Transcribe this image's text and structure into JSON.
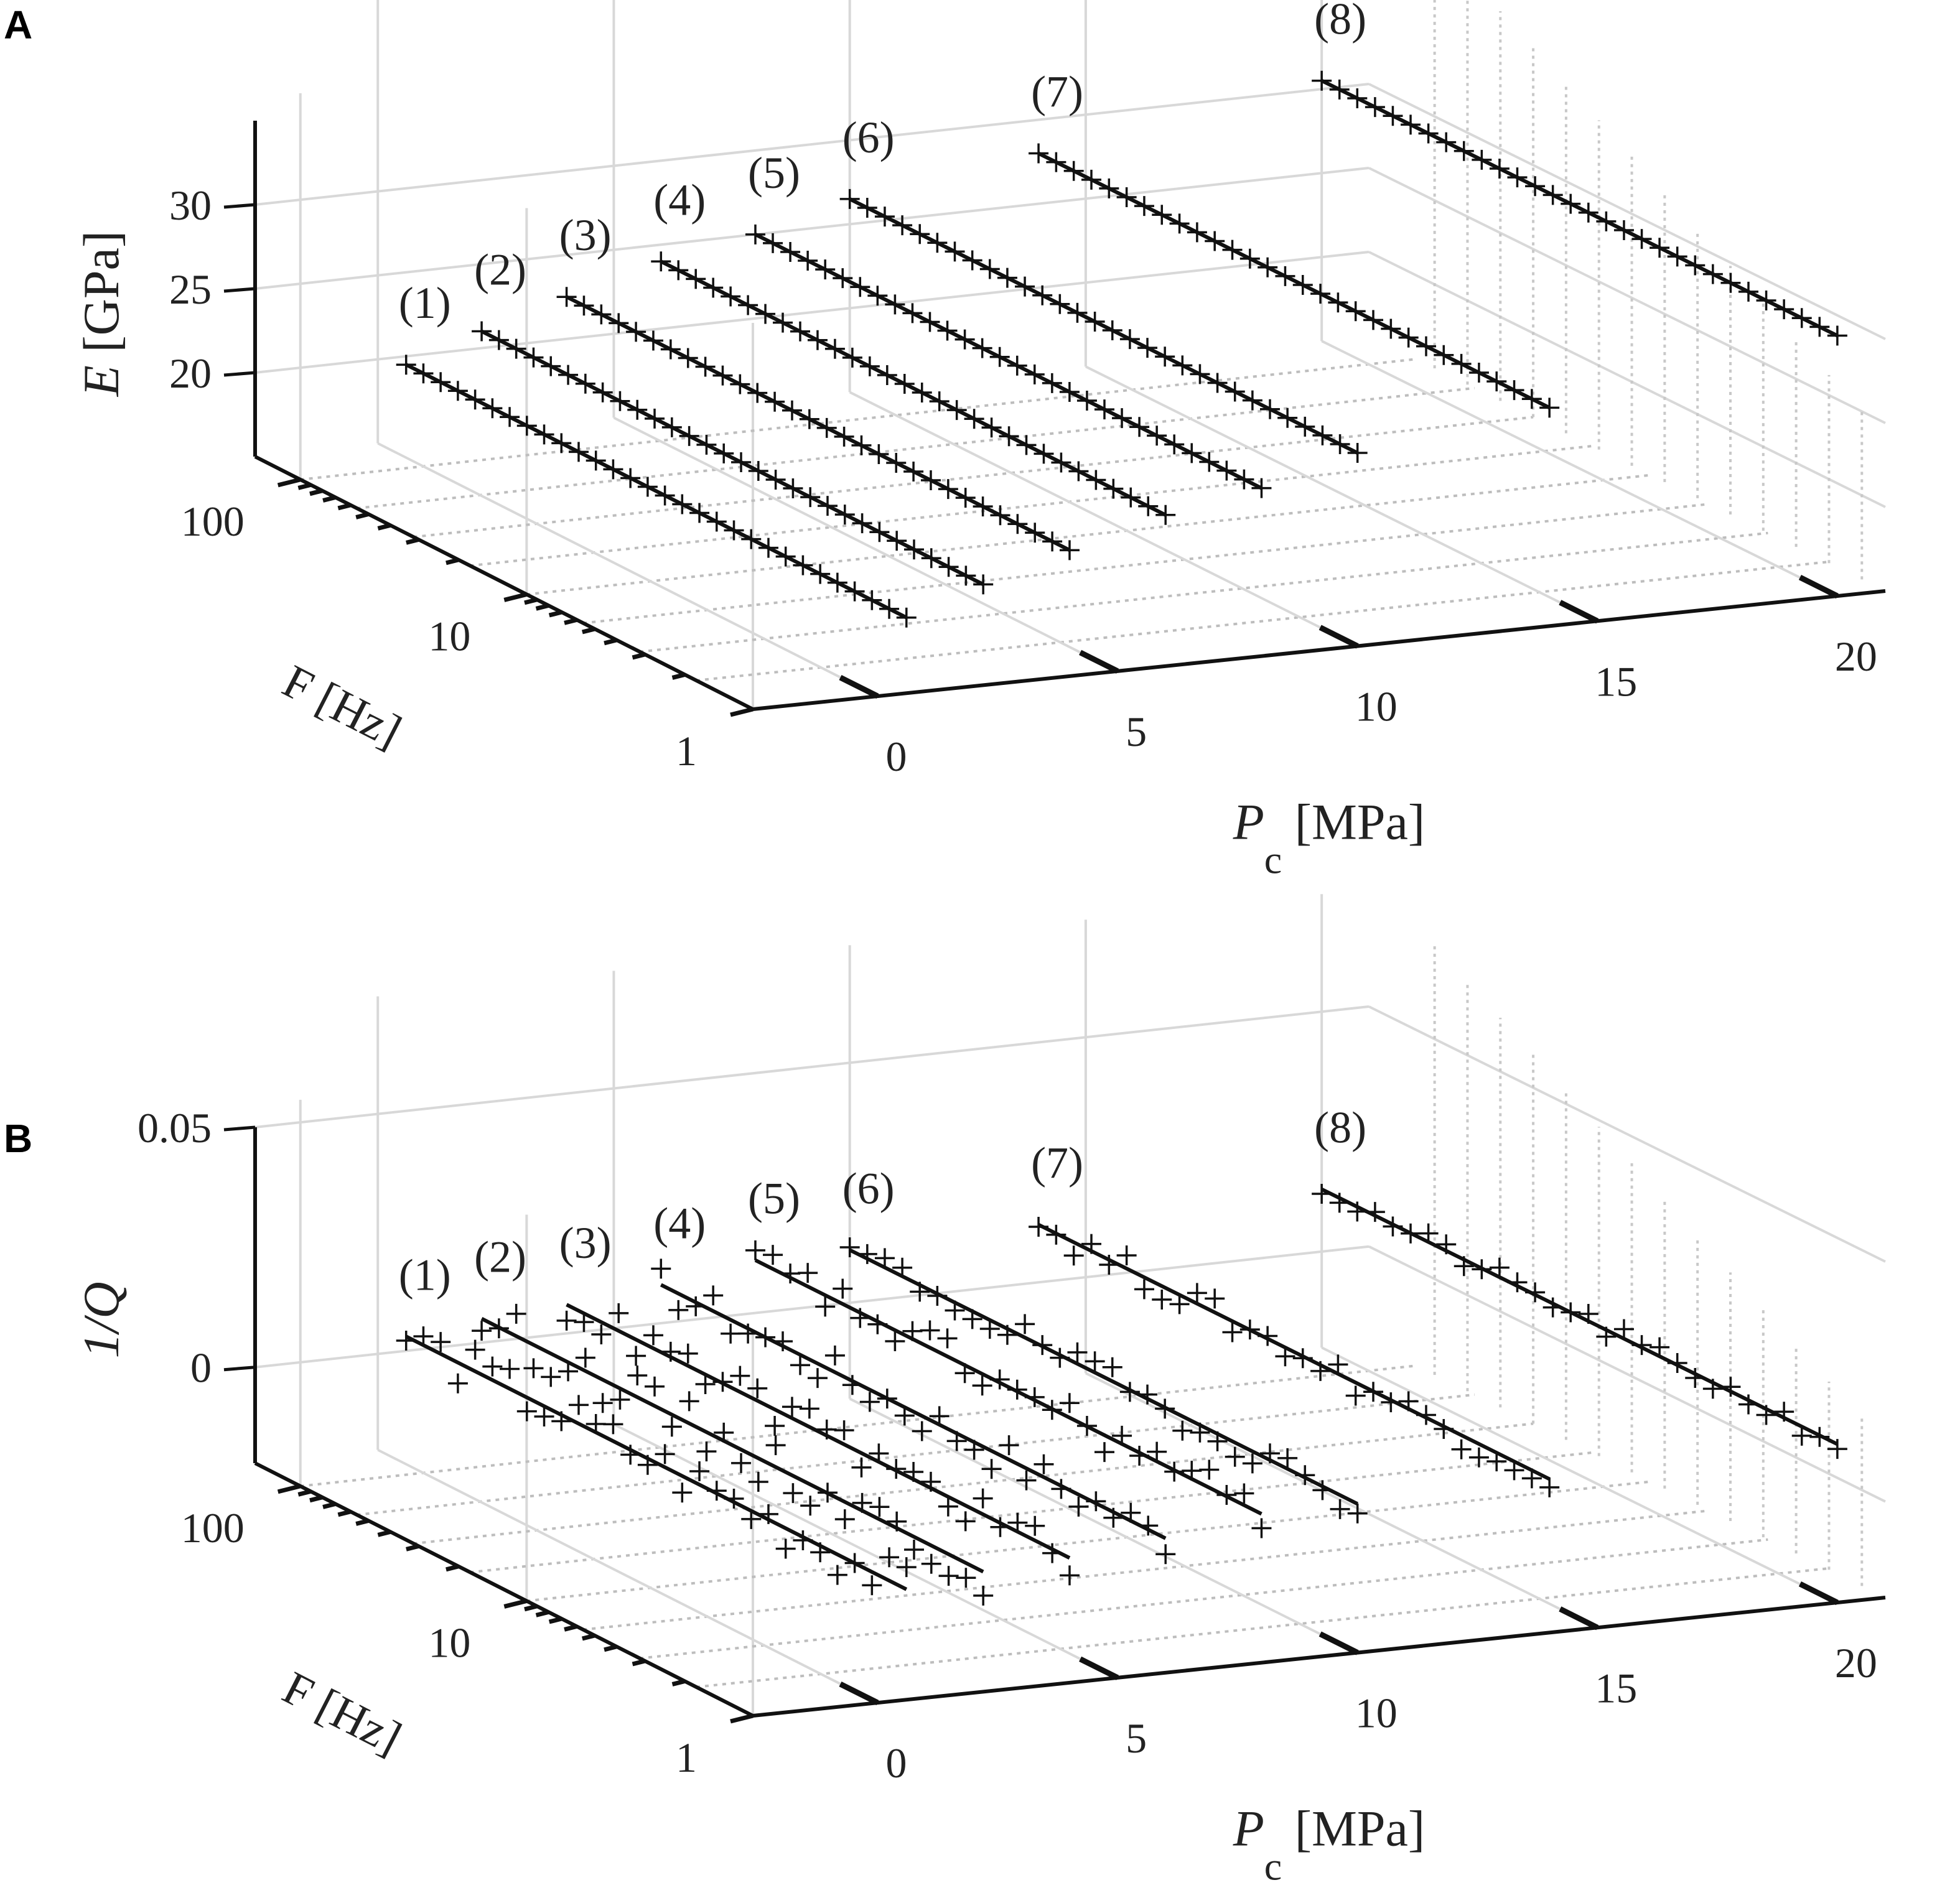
{
  "chart_data": [
    {
      "panel_label": "A",
      "type": "scatter",
      "ylabel": "E [GPa]",
      "ylabel_var": "E",
      "ylabel_unit": " [GPa]",
      "zticks": [
        20,
        25,
        30
      ],
      "zlim": [
        15,
        35
      ],
      "xlabel_var": "P",
      "xlabel_sub": "c",
      "xlabel_unit": " [MPa]",
      "xticks": [
        0,
        5,
        10,
        15,
        20
      ],
      "flabel": "F [Hz]",
      "fticks": [
        "1",
        "10",
        "100"
      ],
      "grid": true,
      "series": [
        {
          "name": "(1)",
          "pc": 0.6,
          "e_low": 19.5,
          "e_high": 19.5,
          "marker_seed": 1
        },
        {
          "name": "(2)",
          "pc": 2.2,
          "e_low": 21.0,
          "e_high": 21.0,
          "marker_seed": 2
        },
        {
          "name": "(3)",
          "pc": 4.0,
          "e_low": 22.5,
          "e_high": 22.5,
          "marker_seed": 3
        },
        {
          "name": "(4)",
          "pc": 6.0,
          "e_low": 24.0,
          "e_high": 24.0,
          "marker_seed": 4
        },
        {
          "name": "(5)",
          "pc": 8.0,
          "e_low": 25.0,
          "e_high": 25.0,
          "marker_seed": 5
        },
        {
          "name": "(6)",
          "pc": 10.0,
          "e_low": 26.5,
          "e_high": 26.5,
          "marker_seed": 6
        },
        {
          "name": "(7)",
          "pc": 14.0,
          "e_low": 28.0,
          "e_high": 28.0,
          "marker_seed": 7
        },
        {
          "name": "(8)",
          "pc": 20.0,
          "e_low": 30.5,
          "e_high": 30.5,
          "marker_seed": 8
        }
      ]
    },
    {
      "panel_label": "B",
      "type": "scatter",
      "ylabel": "1/Q",
      "ylabel_var": "1/Q",
      "ylabel_unit": "",
      "zticks_text": [
        "0",
        "0.05"
      ],
      "zticks": [
        0,
        0.05
      ],
      "zlim": [
        -0.02,
        0.05
      ],
      "xlabel_var": "P",
      "xlabel_sub": "c",
      "xlabel_unit": " [MPa]",
      "xticks": [
        0,
        5,
        10,
        15,
        20
      ],
      "flabel": "F [Hz]",
      "fticks": [
        "1",
        "10",
        "100"
      ],
      "grid": true,
      "series": [
        {
          "name": "(1)",
          "pc": 0.6,
          "q": 0.003,
          "noise": 0.005
        },
        {
          "name": "(2)",
          "pc": 2.2,
          "q": 0.005,
          "noise": 0.005
        },
        {
          "name": "(3)",
          "pc": 4.0,
          "q": 0.006,
          "noise": 0.004
        },
        {
          "name": "(4)",
          "pc": 6.0,
          "q": 0.008,
          "noise": 0.004
        },
        {
          "name": "(5)",
          "pc": 8.0,
          "q": 0.011,
          "noise": 0.004
        },
        {
          "name": "(6)",
          "pc": 10.0,
          "q": 0.011,
          "noise": 0.003
        },
        {
          "name": "(7)",
          "pc": 14.0,
          "q": 0.012,
          "noise": 0.003
        },
        {
          "name": "(8)",
          "pc": 20.0,
          "q": 0.013,
          "noise": 0.002
        }
      ]
    }
  ]
}
